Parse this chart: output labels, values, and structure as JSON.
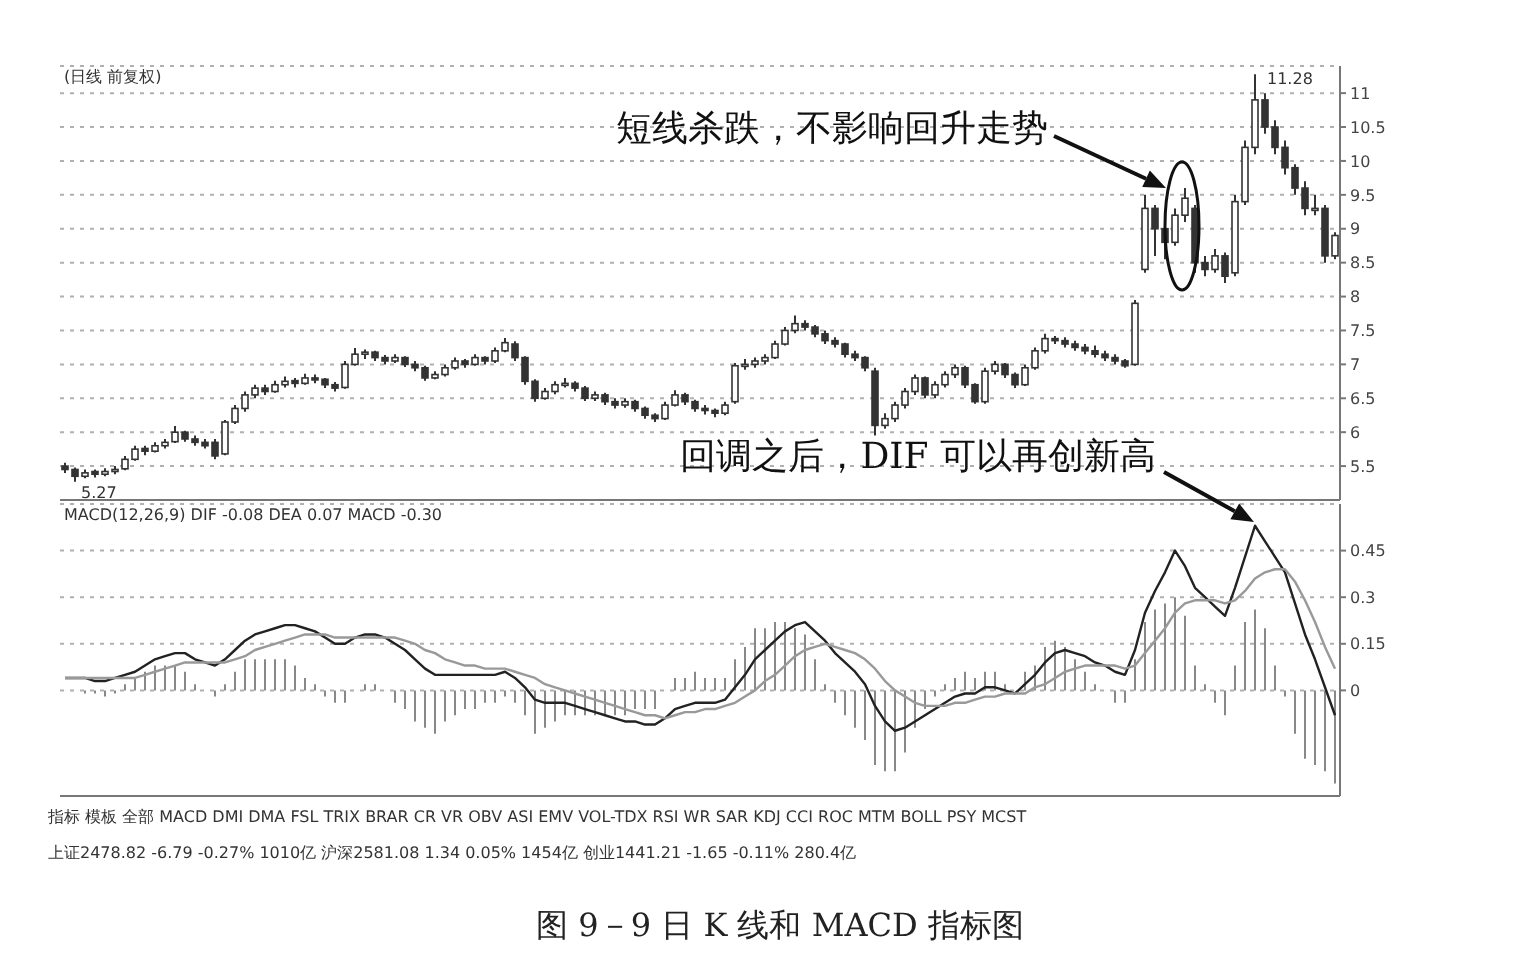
{
  "chart_data": [
    {
      "type": "candlestick",
      "title": "(日线 前复权)",
      "color": "#333333",
      "categories": [
        null,
        null,
        null,
        null,
        null,
        null,
        null,
        null,
        null,
        null,
        null,
        null,
        null,
        null,
        null,
        null,
        null,
        null,
        null,
        null,
        null,
        null,
        null,
        null,
        null,
        null,
        null,
        null,
        null,
        null,
        null,
        null,
        null,
        null,
        null,
        null,
        null,
        null,
        null,
        null,
        null,
        null,
        null,
        null,
        null,
        null,
        null,
        null,
        null,
        null,
        null,
        null,
        null,
        null,
        null,
        null,
        null,
        null,
        null,
        null,
        null,
        null,
        null,
        null,
        null,
        null,
        null,
        null,
        null,
        null,
        null,
        null,
        null,
        null,
        null,
        null,
        null,
        null,
        null,
        null,
        null,
        null,
        null,
        null,
        null,
        null,
        null,
        null,
        null,
        null,
        null,
        null,
        null,
        null,
        null,
        null,
        null,
        null,
        null,
        null,
        null,
        null,
        null,
        null,
        null,
        null,
        null,
        null,
        null,
        null,
        null,
        null,
        null,
        null,
        null,
        null,
        null,
        null,
        null,
        null,
        null,
        null,
        null,
        null,
        null,
        null,
        null,
        null
      ],
      "ohlc": [
        [
          5.5,
          5.55,
          5.4,
          5.45
        ],
        [
          5.45,
          5.48,
          5.27,
          5.35
        ],
        [
          5.35,
          5.45,
          5.32,
          5.4
        ],
        [
          5.42,
          5.45,
          5.33,
          5.38
        ],
        [
          5.38,
          5.47,
          5.35,
          5.42
        ],
        [
          5.42,
          5.5,
          5.38,
          5.45
        ],
        [
          5.46,
          5.65,
          5.44,
          5.6
        ],
        [
          5.6,
          5.8,
          5.58,
          5.75
        ],
        [
          5.76,
          5.8,
          5.66,
          5.72
        ],
        [
          5.72,
          5.85,
          5.7,
          5.8
        ],
        [
          5.8,
          5.9,
          5.76,
          5.85
        ],
        [
          5.86,
          6.09,
          5.84,
          6
        ],
        [
          6,
          6.02,
          5.86,
          5.9
        ],
        [
          5.9,
          5.95,
          5.8,
          5.85
        ],
        [
          5.85,
          5.9,
          5.76,
          5.8
        ],
        [
          5.85,
          5.9,
          5.6,
          5.65
        ],
        [
          5.68,
          6.18,
          5.66,
          6.15
        ],
        [
          6.15,
          6.4,
          6.12,
          6.35
        ],
        [
          6.35,
          6.6,
          6.3,
          6.55
        ],
        [
          6.55,
          6.7,
          6.5,
          6.65
        ],
        [
          6.65,
          6.7,
          6.55,
          6.6
        ],
        [
          6.6,
          6.76,
          6.58,
          6.7
        ],
        [
          6.7,
          6.82,
          6.66,
          6.75
        ],
        [
          6.76,
          6.8,
          6.66,
          6.72
        ],
        [
          6.72,
          6.86,
          6.7,
          6.8
        ],
        [
          6.8,
          6.85,
          6.72,
          6.78
        ],
        [
          6.78,
          6.8,
          6.65,
          6.7
        ],
        [
          6.7,
          6.74,
          6.6,
          6.65
        ],
        [
          6.66,
          7.05,
          6.64,
          7
        ],
        [
          7,
          7.24,
          6.98,
          7.15
        ],
        [
          7.15,
          7.22,
          7.08,
          7.18
        ],
        [
          7.18,
          7.2,
          7.05,
          7.1
        ],
        [
          7.1,
          7.14,
          7,
          7.05
        ],
        [
          7.05,
          7.15,
          7.02,
          7.1
        ],
        [
          7.1,
          7.12,
          6.96,
          7
        ],
        [
          7,
          7.05,
          6.9,
          6.95
        ],
        [
          6.95,
          6.98,
          6.76,
          6.8
        ],
        [
          6.8,
          6.9,
          6.78,
          6.85
        ],
        [
          6.85,
          7,
          6.82,
          6.95
        ],
        [
          6.95,
          7.1,
          6.92,
          7.05
        ],
        [
          7.05,
          7.08,
          6.95,
          7
        ],
        [
          7,
          7.15,
          6.98,
          7.1
        ],
        [
          7.1,
          7.12,
          7,
          7.05
        ],
        [
          7.05,
          7.25,
          7.02,
          7.2
        ],
        [
          7.2,
          7.39,
          7.18,
          7.32
        ],
        [
          7.3,
          7.34,
          7.05,
          7.1
        ],
        [
          7.1,
          7.12,
          6.7,
          6.75
        ],
        [
          6.75,
          6.78,
          6.45,
          6.5
        ],
        [
          6.5,
          6.65,
          6.48,
          6.6
        ],
        [
          6.6,
          6.75,
          6.56,
          6.7
        ],
        [
          6.7,
          6.8,
          6.66,
          6.72
        ],
        [
          6.72,
          6.75,
          6.6,
          6.65
        ],
        [
          6.65,
          6.68,
          6.46,
          6.5
        ],
        [
          6.5,
          6.6,
          6.46,
          6.55
        ],
        [
          6.55,
          6.58,
          6.4,
          6.45
        ],
        [
          6.45,
          6.5,
          6.35,
          6.4
        ],
        [
          6.4,
          6.5,
          6.36,
          6.45
        ],
        [
          6.45,
          6.48,
          6.3,
          6.35
        ],
        [
          6.35,
          6.38,
          6.2,
          6.25
        ],
        [
          6.25,
          6.28,
          6.15,
          6.2
        ],
        [
          6.2,
          6.45,
          6.18,
          6.4
        ],
        [
          6.4,
          6.62,
          6.38,
          6.55
        ],
        [
          6.55,
          6.58,
          6.4,
          6.45
        ],
        [
          6.45,
          6.48,
          6.3,
          6.35
        ],
        [
          6.35,
          6.4,
          6.26,
          6.32
        ],
        [
          6.32,
          6.35,
          6.22,
          6.28
        ],
        [
          6.28,
          6.45,
          6.25,
          6.4
        ],
        [
          6.45,
          7.02,
          6.42,
          6.98
        ],
        [
          6.98,
          7.08,
          6.92,
          7
        ],
        [
          7,
          7.1,
          6.95,
          7.05
        ],
        [
          7.05,
          7.15,
          7,
          7.1
        ],
        [
          7.1,
          7.35,
          7.08,
          7.3
        ],
        [
          7.3,
          7.55,
          7.28,
          7.5
        ],
        [
          7.5,
          7.72,
          7.46,
          7.6
        ],
        [
          7.6,
          7.65,
          7.5,
          7.55
        ],
        [
          7.55,
          7.58,
          7.4,
          7.45
        ],
        [
          7.45,
          7.5,
          7.3,
          7.35
        ],
        [
          7.35,
          7.4,
          7.25,
          7.3
        ],
        [
          7.3,
          7.32,
          7.1,
          7.15
        ],
        [
          7.15,
          7.2,
          7.05,
          7.1
        ],
        [
          7.1,
          7.12,
          6.9,
          6.95
        ],
        [
          6.9,
          6.95,
          5.95,
          6.1
        ],
        [
          6.1,
          6.28,
          6.05,
          6.2
        ],
        [
          6.2,
          6.45,
          6.15,
          6.4
        ],
        [
          6.4,
          6.65,
          6.35,
          6.6
        ],
        [
          6.6,
          6.85,
          6.55,
          6.8
        ],
        [
          6.8,
          6.82,
          6.5,
          6.55
        ],
        [
          6.55,
          6.75,
          6.5,
          6.7
        ],
        [
          6.7,
          6.9,
          6.66,
          6.85
        ],
        [
          6.85,
          7,
          6.8,
          6.95
        ],
        [
          6.95,
          6.98,
          6.65,
          6.7
        ],
        [
          6.7,
          6.72,
          6.42,
          6.45
        ],
        [
          6.45,
          6.95,
          6.42,
          6.9
        ],
        [
          6.9,
          7.05,
          6.85,
          7
        ],
        [
          7,
          7.02,
          6.8,
          6.85
        ],
        [
          6.85,
          6.88,
          6.65,
          6.7
        ],
        [
          6.7,
          7,
          6.68,
          6.95
        ],
        [
          6.95,
          7.25,
          6.92,
          7.2
        ],
        [
          7.2,
          7.45,
          7.16,
          7.38
        ],
        [
          7.38,
          7.42,
          7.3,
          7.35
        ],
        [
          7.35,
          7.4,
          7.25,
          7.3
        ],
        [
          7.3,
          7.35,
          7.2,
          7.25
        ],
        [
          7.25,
          7.3,
          7.15,
          7.2
        ],
        [
          7.2,
          7.28,
          7.1,
          7.15
        ],
        [
          7.15,
          7.2,
          7.05,
          7.1
        ],
        [
          7.1,
          7.15,
          7,
          7.05
        ],
        [
          7.05,
          7.08,
          6.95,
          6.98
        ],
        [
          7,
          7.95,
          6.98,
          7.9
        ],
        [
          8.4,
          9.5,
          8.35,
          9.3
        ],
        [
          9.3,
          9.35,
          8.6,
          9
        ],
        [
          9,
          9.1,
          8.55,
          8.8
        ],
        [
          8.8,
          9.3,
          8.75,
          9.2
        ],
        [
          9.2,
          9.6,
          9.1,
          9.45
        ],
        [
          9.3,
          9.35,
          8.35,
          8.5
        ],
        [
          8.5,
          8.6,
          8.3,
          8.4
        ],
        [
          8.4,
          8.7,
          8.35,
          8.6
        ],
        [
          8.6,
          8.65,
          8.2,
          8.3
        ],
        [
          8.35,
          9.5,
          8.3,
          9.4
        ],
        [
          9.4,
          10.3,
          9.35,
          10.2
        ],
        [
          10.2,
          11.28,
          10.1,
          10.9
        ],
        [
          10.9,
          11,
          10.4,
          10.5
        ],
        [
          10.5,
          10.6,
          10.1,
          10.2
        ],
        [
          10.2,
          10.3,
          9.8,
          9.9
        ],
        [
          9.9,
          9.95,
          9.5,
          9.6
        ],
        [
          9.6,
          9.7,
          9.2,
          9.3
        ],
        [
          9.3,
          9.5,
          9.2,
          9.3
        ],
        [
          9.3,
          9.35,
          8.5,
          8.6
        ],
        [
          8.6,
          8.95,
          8.55,
          8.9
        ]
      ],
      "value_labels": [
        null,
        "5.27",
        null,
        null,
        null,
        null,
        null,
        null,
        null,
        null,
        null,
        null,
        null,
        null,
        null,
        null,
        null,
        null,
        null,
        null,
        null,
        null,
        null,
        null,
        null,
        null,
        null,
        null,
        null,
        null,
        null,
        null,
        null,
        null,
        null,
        null,
        null,
        null,
        null,
        null,
        null,
        null,
        null,
        null,
        null,
        null,
        null,
        null,
        null,
        null,
        null,
        null,
        null,
        null,
        null,
        null,
        null,
        null,
        null,
        null,
        null,
        null,
        null,
        null,
        null,
        null,
        null,
        null,
        null,
        null,
        null,
        null,
        null,
        null,
        null,
        null,
        null,
        null,
        null,
        null,
        null,
        null,
        null,
        null,
        null,
        null,
        null,
        null,
        null,
        null,
        null,
        null,
        null,
        null,
        null,
        null,
        null,
        null,
        null,
        null,
        null,
        null,
        null,
        null,
        null,
        null,
        null,
        null,
        null,
        null,
        null,
        null,
        null,
        null,
        null,
        null,
        null,
        null,
        null,
        "11.28",
        null,
        null,
        null,
        null,
        null,
        null,
        null,
        null
      ],
      "ylim": [
        5,
        11.4
      ],
      "yticks": [
        5.5,
        6,
        6.5,
        7,
        7.5,
        8,
        8.5,
        9,
        9.5,
        10,
        10.5,
        11
      ],
      "grid": "y",
      "tick_labels": "y",
      "annotations": [
        "短线杀跌，不影响回升走势"
      ]
    },
    {
      "type": "line",
      "title": "MACD(12,26,9) DIF -0.08 DEA 0.07 MACD -0.30",
      "categories": [
        null,
        null,
        null,
        null,
        null,
        null,
        null,
        null,
        null,
        null,
        null,
        null,
        null,
        null,
        null,
        null,
        null,
        null,
        null,
        null,
        null,
        null,
        null,
        null,
        null,
        null,
        null,
        null,
        null,
        null,
        null,
        null,
        null,
        null,
        null,
        null,
        null,
        null,
        null,
        null,
        null,
        null,
        null,
        null,
        null,
        null,
        null,
        null,
        null,
        null,
        null,
        null,
        null,
        null,
        null,
        null,
        null,
        null,
        null,
        null,
        null,
        null,
        null,
        null,
        null,
        null,
        null,
        null,
        null,
        null,
        null,
        null,
        null,
        null,
        null,
        null,
        null,
        null,
        null,
        null,
        null,
        null,
        null,
        null,
        null,
        null,
        null,
        null,
        null,
        null,
        null,
        null,
        null,
        null,
        null,
        null,
        null,
        null,
        null,
        null,
        null,
        null,
        null,
        null,
        null,
        null,
        null,
        null,
        null,
        null,
        null,
        null,
        null,
        null,
        null,
        null,
        null,
        null,
        null,
        null,
        null,
        null,
        null,
        null,
        null,
        null,
        null,
        null
      ],
      "series": [
        {
          "color": "#222222",
          "values": [
            0.04,
            0.04,
            0.04,
            0.03,
            0.03,
            0.04,
            0.05,
            0.06,
            0.08,
            0.1,
            0.11,
            0.12,
            0.12,
            0.1,
            0.09,
            0.08,
            0.1,
            0.13,
            0.16,
            0.18,
            0.19,
            0.2,
            0.21,
            0.21,
            0.2,
            0.19,
            0.17,
            0.15,
            0.15,
            0.17,
            0.18,
            0.18,
            0.17,
            0.15,
            0.13,
            0.1,
            0.07,
            0.05,
            0.05,
            0.05,
            0.05,
            0.05,
            0.05,
            0.05,
            0.06,
            0.04,
            0.01,
            -0.03,
            -0.04,
            -0.04,
            -0.04,
            -0.05,
            -0.06,
            -0.07,
            -0.08,
            -0.09,
            -0.1,
            -0.1,
            -0.11,
            -0.11,
            -0.09,
            -0.06,
            -0.05,
            -0.04,
            -0.04,
            -0.04,
            -0.03,
            0.01,
            0.05,
            0.1,
            0.13,
            0.16,
            0.19,
            0.21,
            0.22,
            0.19,
            0.16,
            0.12,
            0.09,
            0.06,
            0.02,
            -0.05,
            -0.1,
            -0.13,
            -0.12,
            -0.1,
            -0.08,
            -0.06,
            -0.04,
            -0.02,
            -0.01,
            -0.01,
            0.01,
            0.01,
            0,
            -0.01,
            0.02,
            0.05,
            0.09,
            0.12,
            0.13,
            0.12,
            0.11,
            0.09,
            0.08,
            0.06,
            0.05,
            0.13,
            0.25,
            0.32,
            0.38,
            0.45,
            0.4,
            0.33,
            0.3,
            0.27,
            0.24,
            0.33,
            0.43,
            0.53,
            0.48,
            0.43,
            0.38,
            0.28,
            0.18,
            0.1,
            0.01,
            -0.08
          ]
        },
        {
          "color": "#999999",
          "values": [
            0.04,
            0.04,
            0.04,
            0.04,
            0.04,
            0.04,
            0.04,
            0.04,
            0.05,
            0.06,
            0.07,
            0.08,
            0.09,
            0.09,
            0.09,
            0.09,
            0.09,
            0.1,
            0.11,
            0.13,
            0.14,
            0.15,
            0.16,
            0.17,
            0.18,
            0.18,
            0.18,
            0.17,
            0.17,
            0.17,
            0.17,
            0.17,
            0.17,
            0.17,
            0.16,
            0.15,
            0.13,
            0.12,
            0.1,
            0.09,
            0.08,
            0.08,
            0.07,
            0.07,
            0.07,
            0.06,
            0.05,
            0.04,
            0.02,
            0.01,
            0,
            -0.01,
            -0.02,
            -0.03,
            -0.04,
            -0.05,
            -0.06,
            -0.07,
            -0.08,
            -0.08,
            -0.09,
            -0.08,
            -0.07,
            -0.07,
            -0.06,
            -0.06,
            -0.05,
            -0.04,
            -0.02,
            0,
            0.03,
            0.05,
            0.08,
            0.11,
            0.13,
            0.14,
            0.15,
            0.14,
            0.13,
            0.12,
            0.1,
            0.07,
            0.03,
            0,
            -0.02,
            -0.04,
            -0.05,
            -0.05,
            -0.05,
            -0.04,
            -0.04,
            -0.03,
            -0.02,
            -0.02,
            -0.01,
            -0.01,
            -0.01,
            0.01,
            0.02,
            0.04,
            0.06,
            0.07,
            0.08,
            0.08,
            0.08,
            0.08,
            0.07,
            0.08,
            0.12,
            0.16,
            0.2,
            0.25,
            0.28,
            0.29,
            0.29,
            0.29,
            0.28,
            0.29,
            0.32,
            0.36,
            0.38,
            0.39,
            0.39,
            0.35,
            0.29,
            0.22,
            0.14,
            0.07
          ]
        },
        {
          "type": "bar",
          "color": "#888888",
          "values": [
            0,
            0,
            -0.01,
            -0.01,
            -0.02,
            -0.01,
            0.02,
            0.04,
            0.06,
            0.08,
            0.08,
            0.08,
            0.06,
            0.02,
            0,
            -0.02,
            0.02,
            0.06,
            0.1,
            0.1,
            0.1,
            0.1,
            0.1,
            0.08,
            0.04,
            0.02,
            -0.02,
            -0.04,
            -0.04,
            0,
            0.02,
            0.02,
            0,
            -0.04,
            -0.06,
            -0.1,
            -0.12,
            -0.14,
            -0.1,
            -0.08,
            -0.06,
            -0.06,
            -0.04,
            -0.04,
            -0.02,
            -0.04,
            -0.08,
            -0.14,
            -0.12,
            -0.1,
            -0.08,
            -0.08,
            -0.08,
            -0.08,
            -0.08,
            -0.08,
            -0.08,
            -0.06,
            -0.06,
            -0.06,
            0,
            0.04,
            0.04,
            0.06,
            0.04,
            0.04,
            0.04,
            0.1,
            0.14,
            0.2,
            0.2,
            0.22,
            0.22,
            0.2,
            0.18,
            0.1,
            0.02,
            -0.04,
            -0.08,
            -0.12,
            -0.16,
            -0.24,
            -0.26,
            -0.26,
            -0.2,
            -0.12,
            -0.06,
            -0.02,
            0.02,
            0.04,
            0.06,
            0.04,
            0.06,
            0.06,
            0.02,
            0,
            0.06,
            0.08,
            0.14,
            0.16,
            0.14,
            0.1,
            0.06,
            0.02,
            0,
            -0.04,
            -0.04,
            0.1,
            0.22,
            0.26,
            0.28,
            0.3,
            0.24,
            0.08,
            0.02,
            -0.04,
            -0.08,
            0.08,
            0.22,
            0.26,
            0.2,
            0.08,
            -0.02,
            -0.14,
            -0.22,
            -0.24,
            -0.26,
            -0.3
          ]
        }
      ],
      "ylim": [
        -0.34,
        0.6
      ],
      "yticks": [
        0,
        0.15,
        0.3,
        0.45
      ],
      "grid": "y",
      "tick_labels": "y",
      "annotations": [
        "回调之后，DIF 可以再创新高",
        "指标 模板 全部 MACD DMI DMA FSL TRIX BRAR CR VR OBV ASI EMV VOL-TDX RSI WR SAR KDJ CCI ROC MTM BOLL PSY MCST",
        "上证2478.82 -6.79 -0.27% 1010亿 沪深2581.08 1.34 0.05% 1454亿 创业1441.21 -1.65 -0.11% 280.4亿",
        "图 9－9 日 K 线和 MACD 指标图"
      ]
    }
  ]
}
